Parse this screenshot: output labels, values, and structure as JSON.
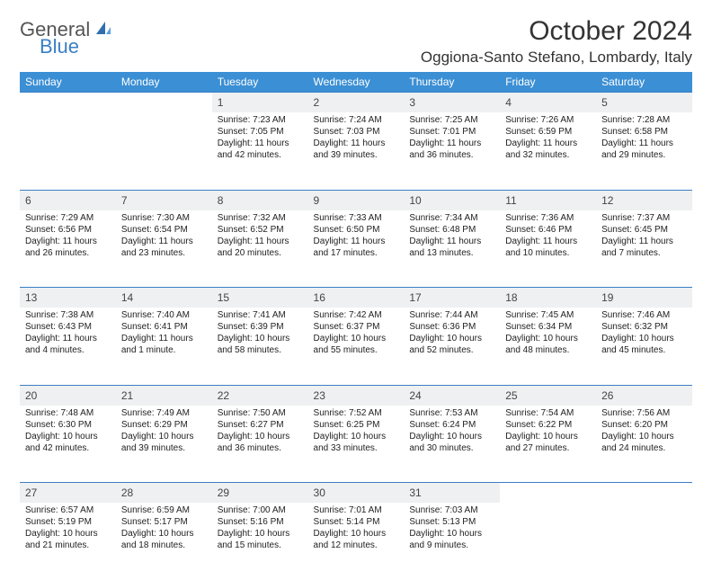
{
  "brand": {
    "text1": "General",
    "text2": "Blue"
  },
  "title": "October 2024",
  "location": "Oggiona-Santo Stefano, Lombardy, Italy",
  "colors": {
    "header_bg": "#3b8fd4",
    "header_fg": "#ffffff",
    "daynum_bg": "#eef0f1",
    "rule": "#3b7fc4",
    "logo_accent": "#3b7fc4",
    "logo_text": "#555555",
    "text": "#222222",
    "page_bg": "#ffffff"
  },
  "fonts": {
    "title_size": 30,
    "location_size": 17,
    "dayhead_size": 12,
    "cell_size": 10
  },
  "day_headers": [
    "Sunday",
    "Monday",
    "Tuesday",
    "Wednesday",
    "Thursday",
    "Friday",
    "Saturday"
  ],
  "weeks": [
    {
      "nums": [
        "",
        "",
        "1",
        "2",
        "3",
        "4",
        "5"
      ],
      "cells": [
        null,
        null,
        {
          "sunrise": "Sunrise: 7:23 AM",
          "sunset": "Sunset: 7:05 PM",
          "day1": "Daylight: 11 hours",
          "day2": "and 42 minutes."
        },
        {
          "sunrise": "Sunrise: 7:24 AM",
          "sunset": "Sunset: 7:03 PM",
          "day1": "Daylight: 11 hours",
          "day2": "and 39 minutes."
        },
        {
          "sunrise": "Sunrise: 7:25 AM",
          "sunset": "Sunset: 7:01 PM",
          "day1": "Daylight: 11 hours",
          "day2": "and 36 minutes."
        },
        {
          "sunrise": "Sunrise: 7:26 AM",
          "sunset": "Sunset: 6:59 PM",
          "day1": "Daylight: 11 hours",
          "day2": "and 32 minutes."
        },
        {
          "sunrise": "Sunrise: 7:28 AM",
          "sunset": "Sunset: 6:58 PM",
          "day1": "Daylight: 11 hours",
          "day2": "and 29 minutes."
        }
      ]
    },
    {
      "nums": [
        "6",
        "7",
        "8",
        "9",
        "10",
        "11",
        "12"
      ],
      "cells": [
        {
          "sunrise": "Sunrise: 7:29 AM",
          "sunset": "Sunset: 6:56 PM",
          "day1": "Daylight: 11 hours",
          "day2": "and 26 minutes."
        },
        {
          "sunrise": "Sunrise: 7:30 AM",
          "sunset": "Sunset: 6:54 PM",
          "day1": "Daylight: 11 hours",
          "day2": "and 23 minutes."
        },
        {
          "sunrise": "Sunrise: 7:32 AM",
          "sunset": "Sunset: 6:52 PM",
          "day1": "Daylight: 11 hours",
          "day2": "and 20 minutes."
        },
        {
          "sunrise": "Sunrise: 7:33 AM",
          "sunset": "Sunset: 6:50 PM",
          "day1": "Daylight: 11 hours",
          "day2": "and 17 minutes."
        },
        {
          "sunrise": "Sunrise: 7:34 AM",
          "sunset": "Sunset: 6:48 PM",
          "day1": "Daylight: 11 hours",
          "day2": "and 13 minutes."
        },
        {
          "sunrise": "Sunrise: 7:36 AM",
          "sunset": "Sunset: 6:46 PM",
          "day1": "Daylight: 11 hours",
          "day2": "and 10 minutes."
        },
        {
          "sunrise": "Sunrise: 7:37 AM",
          "sunset": "Sunset: 6:45 PM",
          "day1": "Daylight: 11 hours",
          "day2": "and 7 minutes."
        }
      ]
    },
    {
      "nums": [
        "13",
        "14",
        "15",
        "16",
        "17",
        "18",
        "19"
      ],
      "cells": [
        {
          "sunrise": "Sunrise: 7:38 AM",
          "sunset": "Sunset: 6:43 PM",
          "day1": "Daylight: 11 hours",
          "day2": "and 4 minutes."
        },
        {
          "sunrise": "Sunrise: 7:40 AM",
          "sunset": "Sunset: 6:41 PM",
          "day1": "Daylight: 11 hours",
          "day2": "and 1 minute."
        },
        {
          "sunrise": "Sunrise: 7:41 AM",
          "sunset": "Sunset: 6:39 PM",
          "day1": "Daylight: 10 hours",
          "day2": "and 58 minutes."
        },
        {
          "sunrise": "Sunrise: 7:42 AM",
          "sunset": "Sunset: 6:37 PM",
          "day1": "Daylight: 10 hours",
          "day2": "and 55 minutes."
        },
        {
          "sunrise": "Sunrise: 7:44 AM",
          "sunset": "Sunset: 6:36 PM",
          "day1": "Daylight: 10 hours",
          "day2": "and 52 minutes."
        },
        {
          "sunrise": "Sunrise: 7:45 AM",
          "sunset": "Sunset: 6:34 PM",
          "day1": "Daylight: 10 hours",
          "day2": "and 48 minutes."
        },
        {
          "sunrise": "Sunrise: 7:46 AM",
          "sunset": "Sunset: 6:32 PM",
          "day1": "Daylight: 10 hours",
          "day2": "and 45 minutes."
        }
      ]
    },
    {
      "nums": [
        "20",
        "21",
        "22",
        "23",
        "24",
        "25",
        "26"
      ],
      "cells": [
        {
          "sunrise": "Sunrise: 7:48 AM",
          "sunset": "Sunset: 6:30 PM",
          "day1": "Daylight: 10 hours",
          "day2": "and 42 minutes."
        },
        {
          "sunrise": "Sunrise: 7:49 AM",
          "sunset": "Sunset: 6:29 PM",
          "day1": "Daylight: 10 hours",
          "day2": "and 39 minutes."
        },
        {
          "sunrise": "Sunrise: 7:50 AM",
          "sunset": "Sunset: 6:27 PM",
          "day1": "Daylight: 10 hours",
          "day2": "and 36 minutes."
        },
        {
          "sunrise": "Sunrise: 7:52 AM",
          "sunset": "Sunset: 6:25 PM",
          "day1": "Daylight: 10 hours",
          "day2": "and 33 minutes."
        },
        {
          "sunrise": "Sunrise: 7:53 AM",
          "sunset": "Sunset: 6:24 PM",
          "day1": "Daylight: 10 hours",
          "day2": "and 30 minutes."
        },
        {
          "sunrise": "Sunrise: 7:54 AM",
          "sunset": "Sunset: 6:22 PM",
          "day1": "Daylight: 10 hours",
          "day2": "and 27 minutes."
        },
        {
          "sunrise": "Sunrise: 7:56 AM",
          "sunset": "Sunset: 6:20 PM",
          "day1": "Daylight: 10 hours",
          "day2": "and 24 minutes."
        }
      ]
    },
    {
      "nums": [
        "27",
        "28",
        "29",
        "30",
        "31",
        "",
        ""
      ],
      "cells": [
        {
          "sunrise": "Sunrise: 6:57 AM",
          "sunset": "Sunset: 5:19 PM",
          "day1": "Daylight: 10 hours",
          "day2": "and 21 minutes."
        },
        {
          "sunrise": "Sunrise: 6:59 AM",
          "sunset": "Sunset: 5:17 PM",
          "day1": "Daylight: 10 hours",
          "day2": "and 18 minutes."
        },
        {
          "sunrise": "Sunrise: 7:00 AM",
          "sunset": "Sunset: 5:16 PM",
          "day1": "Daylight: 10 hours",
          "day2": "and 15 minutes."
        },
        {
          "sunrise": "Sunrise: 7:01 AM",
          "sunset": "Sunset: 5:14 PM",
          "day1": "Daylight: 10 hours",
          "day2": "and 12 minutes."
        },
        {
          "sunrise": "Sunrise: 7:03 AM",
          "sunset": "Sunset: 5:13 PM",
          "day1": "Daylight: 10 hours",
          "day2": "and 9 minutes."
        },
        null,
        null
      ]
    }
  ]
}
